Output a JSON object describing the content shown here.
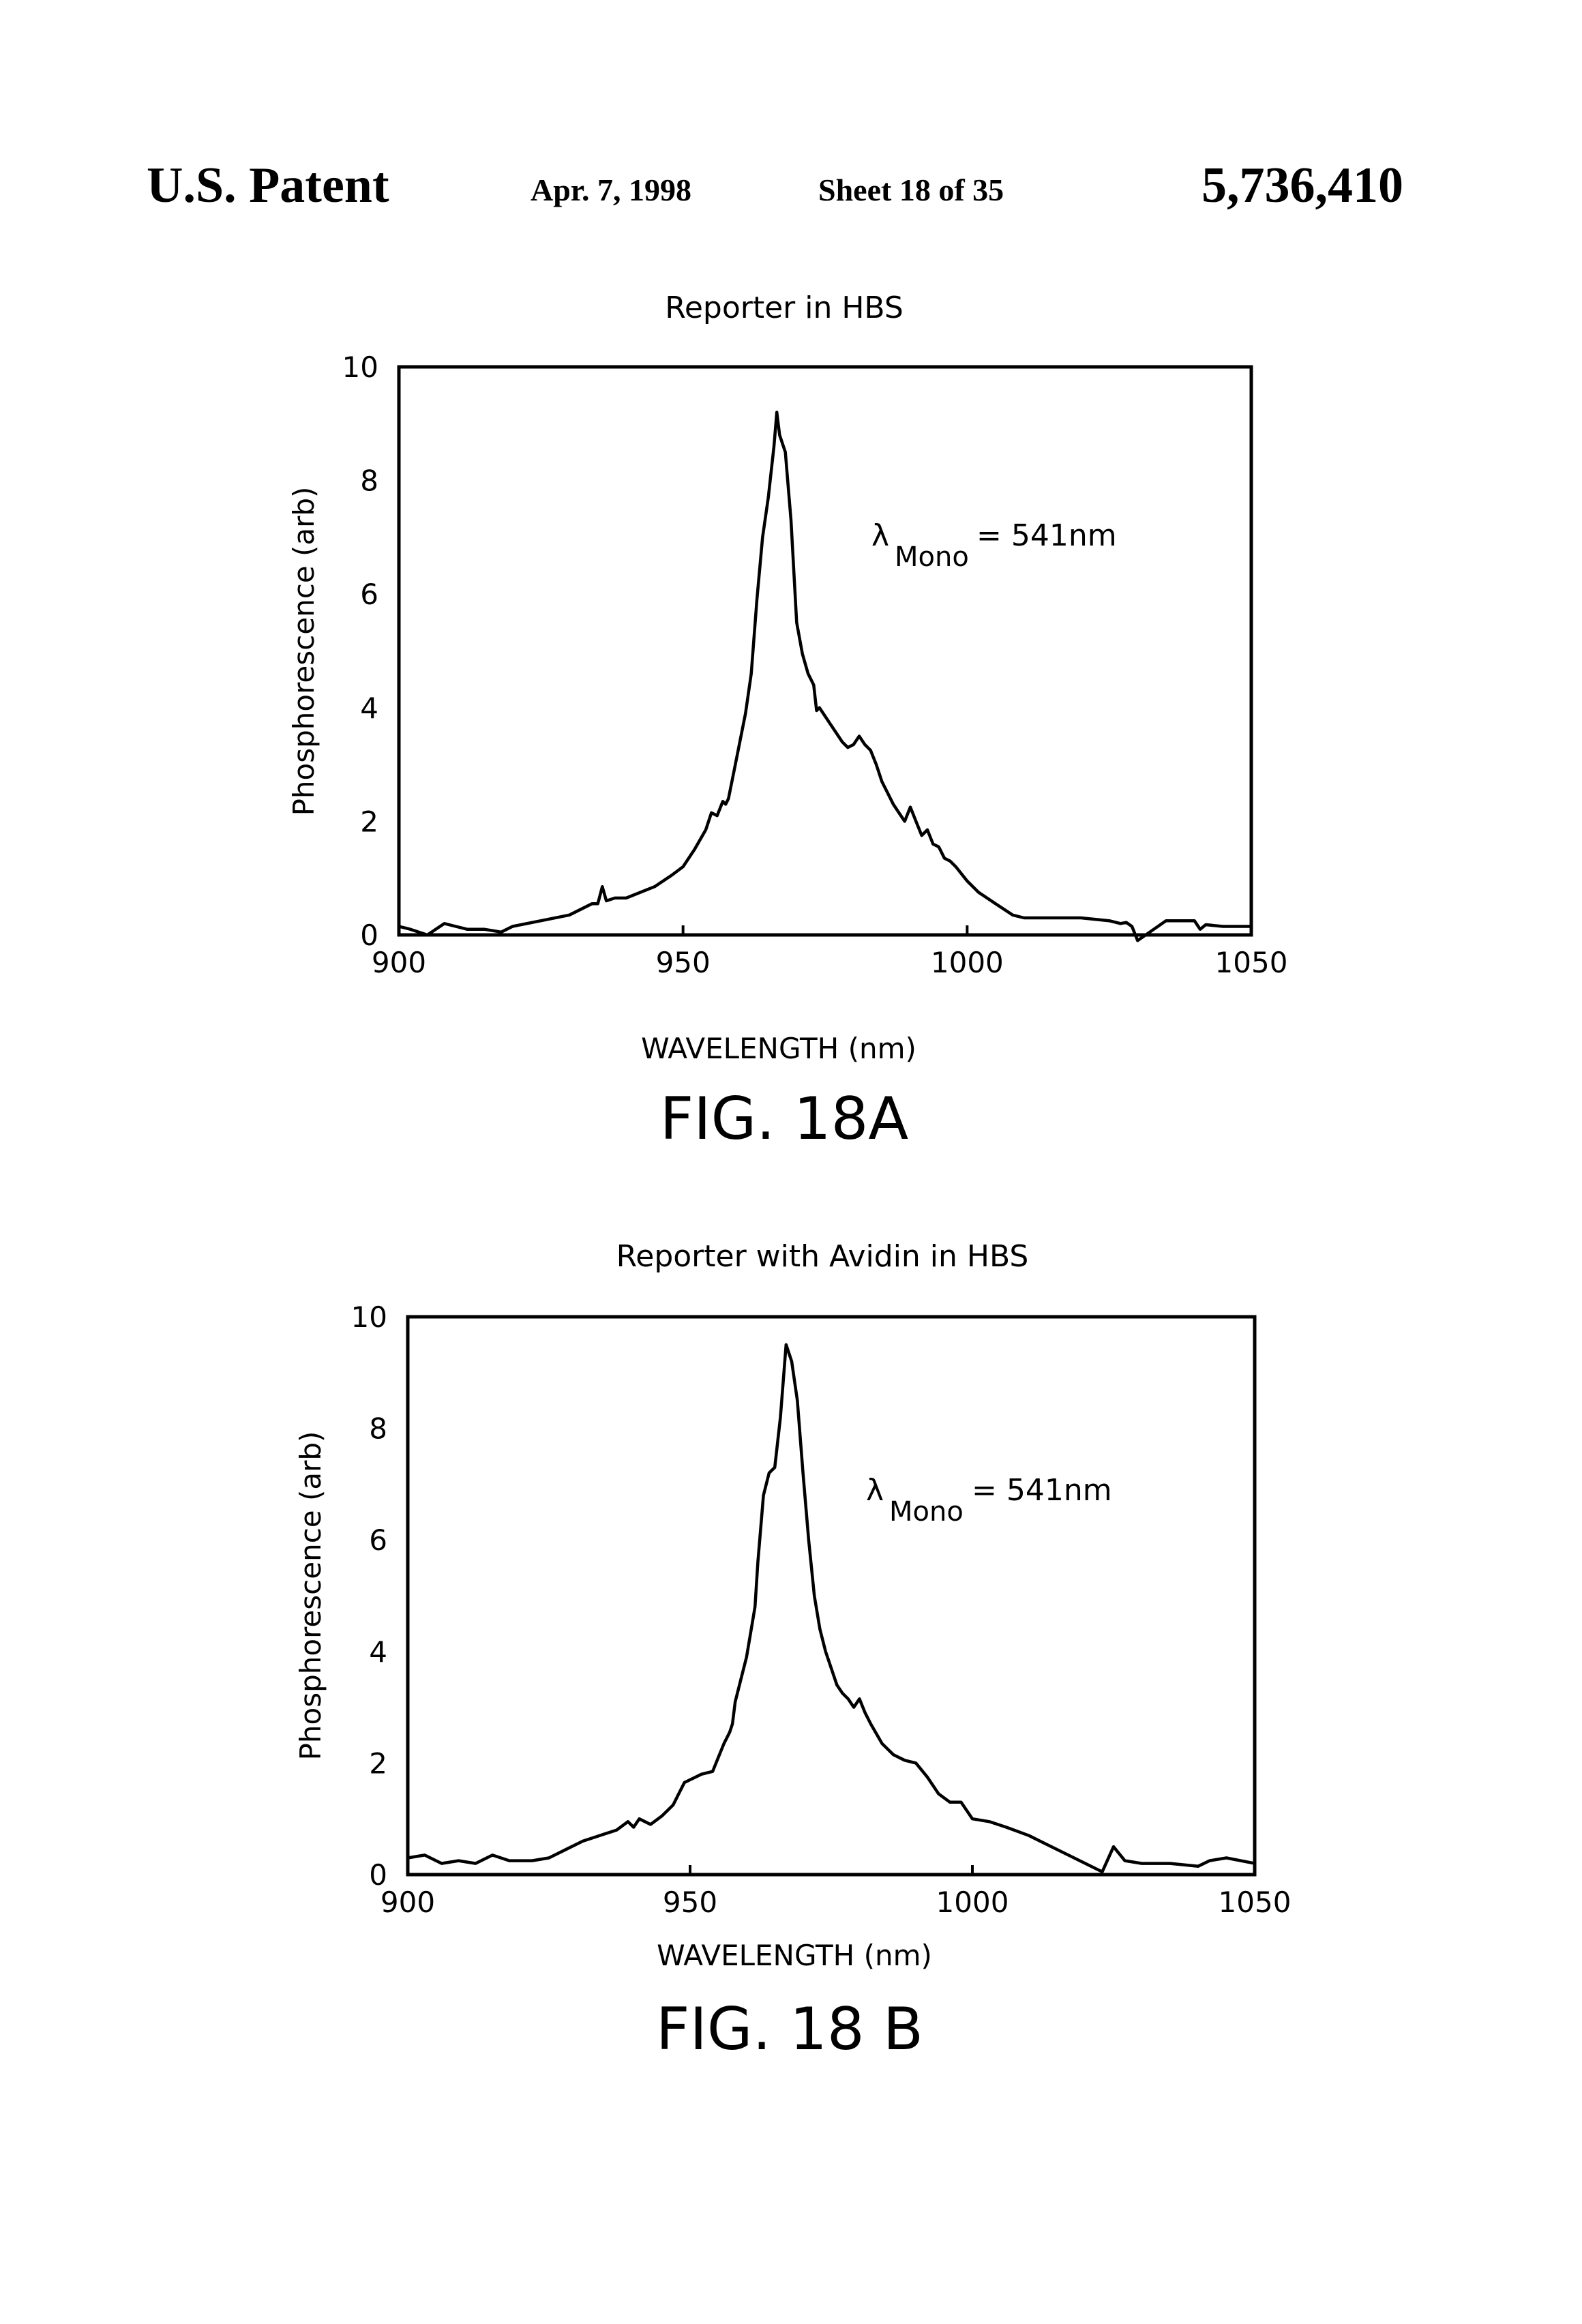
{
  "header": {
    "left": "U.S. Patent",
    "date": "Apr. 7, 1998",
    "sheet": "Sheet 18 of 35",
    "patent_number": "5,736,410"
  },
  "chart_data": [
    {
      "type": "line",
      "title": "Reporter in HBS",
      "figure_label": "FIG. 18A",
      "xlabel": "WAVELENGTH (nm)",
      "ylabel": "Phosphorescence (arb)",
      "xlim": [
        900,
        1050
      ],
      "ylim": [
        0,
        10
      ],
      "x_ticks": [
        "900",
        "950",
        "1000",
        "1050"
      ],
      "y_ticks": [
        "0",
        "2",
        "4",
        "6",
        "8",
        "10"
      ],
      "grid": false,
      "annotation": {
        "lambda": "λ",
        "subscript": "Mono",
        "text": "= 541nm"
      },
      "series": [
        {
          "x": [
            900,
            902,
            905,
            908,
            910,
            912,
            915,
            918,
            920,
            925,
            930,
            933,
            934,
            935,
            935.8,
            936.5,
            938,
            940,
            945,
            948,
            950,
            952,
            954,
            955,
            956,
            957,
            957.5,
            958,
            959,
            960,
            961,
            962,
            963,
            964,
            965,
            966,
            966.5,
            967,
            968,
            969,
            970,
            971,
            972,
            973,
            973.5,
            974,
            975,
            976,
            977,
            978,
            979,
            980,
            981,
            982,
            983,
            984,
            985,
            986,
            987,
            988,
            989,
            990,
            991,
            992,
            993,
            994,
            995,
            996,
            997,
            998,
            1000,
            1002,
            1005,
            1008,
            1010,
            1015,
            1020,
            1025,
            1027,
            1028,
            1029,
            1030,
            1035,
            1040,
            1041,
            1042,
            1045,
            1050
          ],
          "y": [
            0.15,
            0.1,
            0.0,
            0.2,
            0.15,
            0.1,
            0.1,
            0.05,
            0.15,
            0.25,
            0.35,
            0.5,
            0.55,
            0.55,
            0.85,
            0.6,
            0.65,
            0.65,
            0.85,
            1.05,
            1.2,
            1.5,
            1.85,
            2.15,
            2.1,
            2.35,
            2.3,
            2.4,
            2.9,
            3.4,
            3.9,
            4.6,
            5.9,
            7.0,
            7.7,
            8.6,
            9.2,
            8.8,
            8.5,
            7.3,
            5.5,
            4.95,
            4.6,
            4.4,
            3.95,
            4.0,
            3.85,
            3.7,
            3.55,
            3.4,
            3.3,
            3.35,
            3.5,
            3.35,
            3.25,
            3.0,
            2.7,
            2.5,
            2.3,
            2.15,
            2.0,
            2.25,
            2.0,
            1.75,
            1.85,
            1.6,
            1.55,
            1.35,
            1.3,
            1.2,
            0.95,
            0.75,
            0.55,
            0.35,
            0.3,
            0.3,
            0.3,
            0.25,
            0.2,
            0.22,
            0.15,
            -0.1,
            0.25,
            0.25,
            0.1,
            0.18,
            0.15,
            0.15
          ]
        }
      ]
    },
    {
      "type": "line",
      "title": "Reporter with Avidin in HBS",
      "figure_label": "FIG. 18 B",
      "xlabel": "WAVELENGTH (nm)",
      "ylabel": "Phosphorescence (arb)",
      "xlim": [
        900,
        1050
      ],
      "ylim": [
        0,
        10
      ],
      "x_ticks": [
        "900",
        "950",
        "1000",
        "1050"
      ],
      "y_ticks": [
        "0",
        "2",
        "4",
        "6",
        "8",
        "10"
      ],
      "grid": false,
      "annotation": {
        "lambda": "λ",
        "subscript": "Mono",
        "text": "= 541nm"
      },
      "series": [
        {
          "x": [
            900,
            903,
            906,
            909,
            912,
            915,
            918,
            920,
            922,
            925,
            928,
            931,
            934,
            937,
            939,
            940,
            941,
            942,
            943,
            945,
            947,
            948,
            949,
            950,
            952,
            954,
            955,
            956,
            957,
            957.5,
            958,
            959,
            960,
            961,
            961.5,
            962,
            963,
            964,
            965,
            966,
            967,
            968,
            969,
            970,
            971,
            972,
            973,
            974,
            975,
            976,
            977,
            978,
            979,
            980,
            981,
            982,
            984,
            986,
            988,
            990,
            992,
            994,
            996,
            998,
            1000,
            1003,
            1006,
            1010,
            1013,
            1017,
            1020,
            1023,
            1025,
            1027,
            1030,
            1035,
            1040,
            1042,
            1045,
            1050
          ],
          "y": [
            0.3,
            0.35,
            0.2,
            0.25,
            0.2,
            0.35,
            0.25,
            0.25,
            0.25,
            0.3,
            0.45,
            0.6,
            0.7,
            0.8,
            0.95,
            0.85,
            1.0,
            0.95,
            0.9,
            1.05,
            1.25,
            1.45,
            1.65,
            1.7,
            1.8,
            1.85,
            2.1,
            2.35,
            2.55,
            2.7,
            3.1,
            3.5,
            3.9,
            4.5,
            4.8,
            5.6,
            6.8,
            7.2,
            7.3,
            8.2,
            9.5,
            9.2,
            8.5,
            7.2,
            6.0,
            5.0,
            4.4,
            4.0,
            3.7,
            3.4,
            3.25,
            3.15,
            3.0,
            3.15,
            2.9,
            2.7,
            2.35,
            2.15,
            2.05,
            2.0,
            1.75,
            1.45,
            1.3,
            1.3,
            1.0,
            0.95,
            0.85,
            0.7,
            0.55,
            0.35,
            0.2,
            0.05,
            0.5,
            0.25,
            0.2,
            0.2,
            0.15,
            0.25,
            0.3,
            0.2
          ]
        }
      ]
    }
  ]
}
